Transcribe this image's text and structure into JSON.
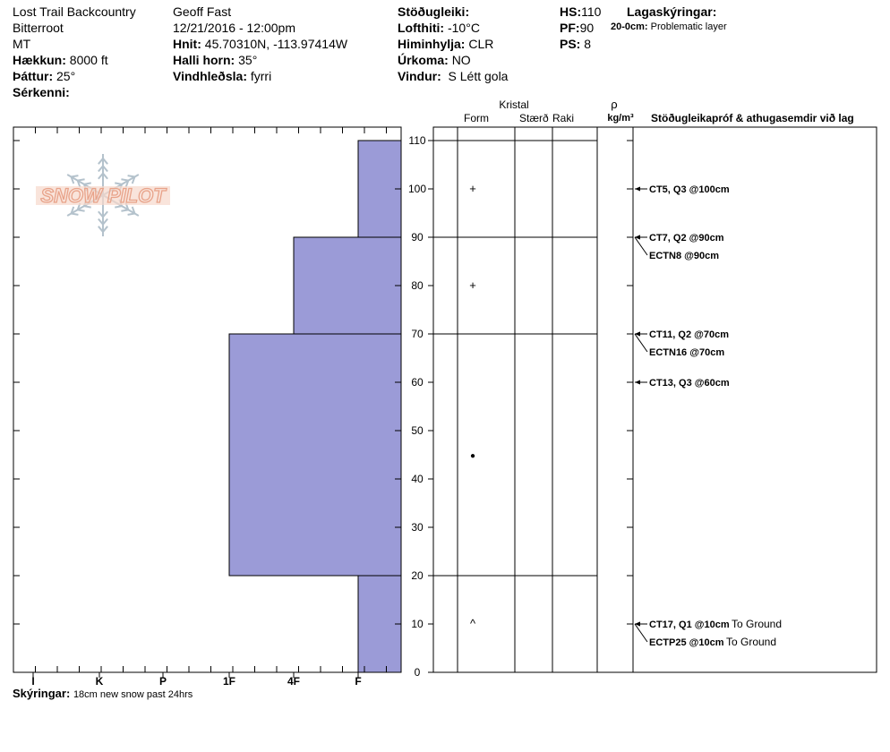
{
  "site": {
    "location": "Lost Trail Backcountry",
    "range": "Bitterroot",
    "state": "MT",
    "elevation_label": "Hækkun:",
    "elevation": "8000 ft",
    "aspect_label": "Þáttur:",
    "aspect": "25°",
    "features_label": "Sérkenni:"
  },
  "observer": {
    "name": "Geoff Fast",
    "datetime": "12/21/2016 - 12:00pm",
    "coords_label": "Hnit:",
    "coords": "45.70310N, -113.97414W",
    "slope_label": "Halli horn:",
    "slope": "35°",
    "wind_loading_label": "Vindhleðsla:",
    "wind_loading": "fyrri"
  },
  "weather": {
    "stability_label": "Stöðugleiki:",
    "air_temp_label": "Lofthiti:",
    "air_temp": "-10°C",
    "sky_label": "Himinhylja:",
    "sky": "CLR",
    "precip_label": "Úrkoma:",
    "precip": "NO",
    "wind_label": "Vindur:",
    "wind": "S Létt gola"
  },
  "depths": {
    "hs_label": "HS:",
    "hs": "110",
    "pf_label": "PF:",
    "pf": "90",
    "ps_label": "PS:",
    "ps": "8"
  },
  "layer_notes": {
    "title": "Lagaskýringar:",
    "range": "20-0cm:",
    "text": "Problematic layer"
  },
  "footer": {
    "label": "Skýringar:",
    "text": "18cm new snow past 24hrs"
  },
  "logo_text": "SNOW PILOT",
  "colors": {
    "layer_fill": "#9b9bd7",
    "logo": "#e8a38a"
  },
  "chart_data": {
    "type": "bar",
    "hardness_ticks": [
      "I",
      "K",
      "P",
      "1F",
      "4F",
      "F"
    ],
    "depth_ticks": [
      110,
      100,
      90,
      80,
      70,
      60,
      50,
      40,
      30,
      20,
      10,
      0
    ],
    "ylim": [
      0,
      110
    ],
    "layers": [
      {
        "top": 110,
        "bottom": 90,
        "hardness": "F"
      },
      {
        "top": 90,
        "bottom": 70,
        "hardness": "4F"
      },
      {
        "top": 70,
        "bottom": 20,
        "hardness": "1F"
      },
      {
        "top": 20,
        "bottom": 0,
        "hardness": "F"
      }
    ],
    "columns": {
      "crystal": "Kristal",
      "form": "Form",
      "size": "Stærð",
      "moisture": "Raki",
      "density_symbol": "ρ",
      "density_unit": "kg/m³",
      "tests": "Stöðugleikapróf & athugasemdir við lag"
    },
    "grain_forms": [
      {
        "depth": 100,
        "symbol": "+"
      },
      {
        "depth": 80,
        "symbol": "+"
      },
      {
        "depth": 45,
        "symbol": "●"
      },
      {
        "depth": 10,
        "symbol": "^"
      }
    ],
    "tests": [
      {
        "depth": 100,
        "text": "CT5, Q3 @100cm",
        "extra": ""
      },
      {
        "depth": 90,
        "text": "CT7, Q2 @90cm",
        "extra": ""
      },
      {
        "depth": 90,
        "text": "ECTN8 @90cm",
        "extra": ""
      },
      {
        "depth": 70,
        "text": "CT11, Q2 @70cm",
        "extra": ""
      },
      {
        "depth": 70,
        "text": "ECTN16 @70cm",
        "extra": ""
      },
      {
        "depth": 60,
        "text": "CT13, Q3 @60cm",
        "extra": ""
      },
      {
        "depth": 10,
        "text": "CT17, Q1 @10cm",
        "extra": "To Ground"
      },
      {
        "depth": 10,
        "text": "ECTP25 @10cm",
        "extra": "To Ground"
      }
    ]
  }
}
